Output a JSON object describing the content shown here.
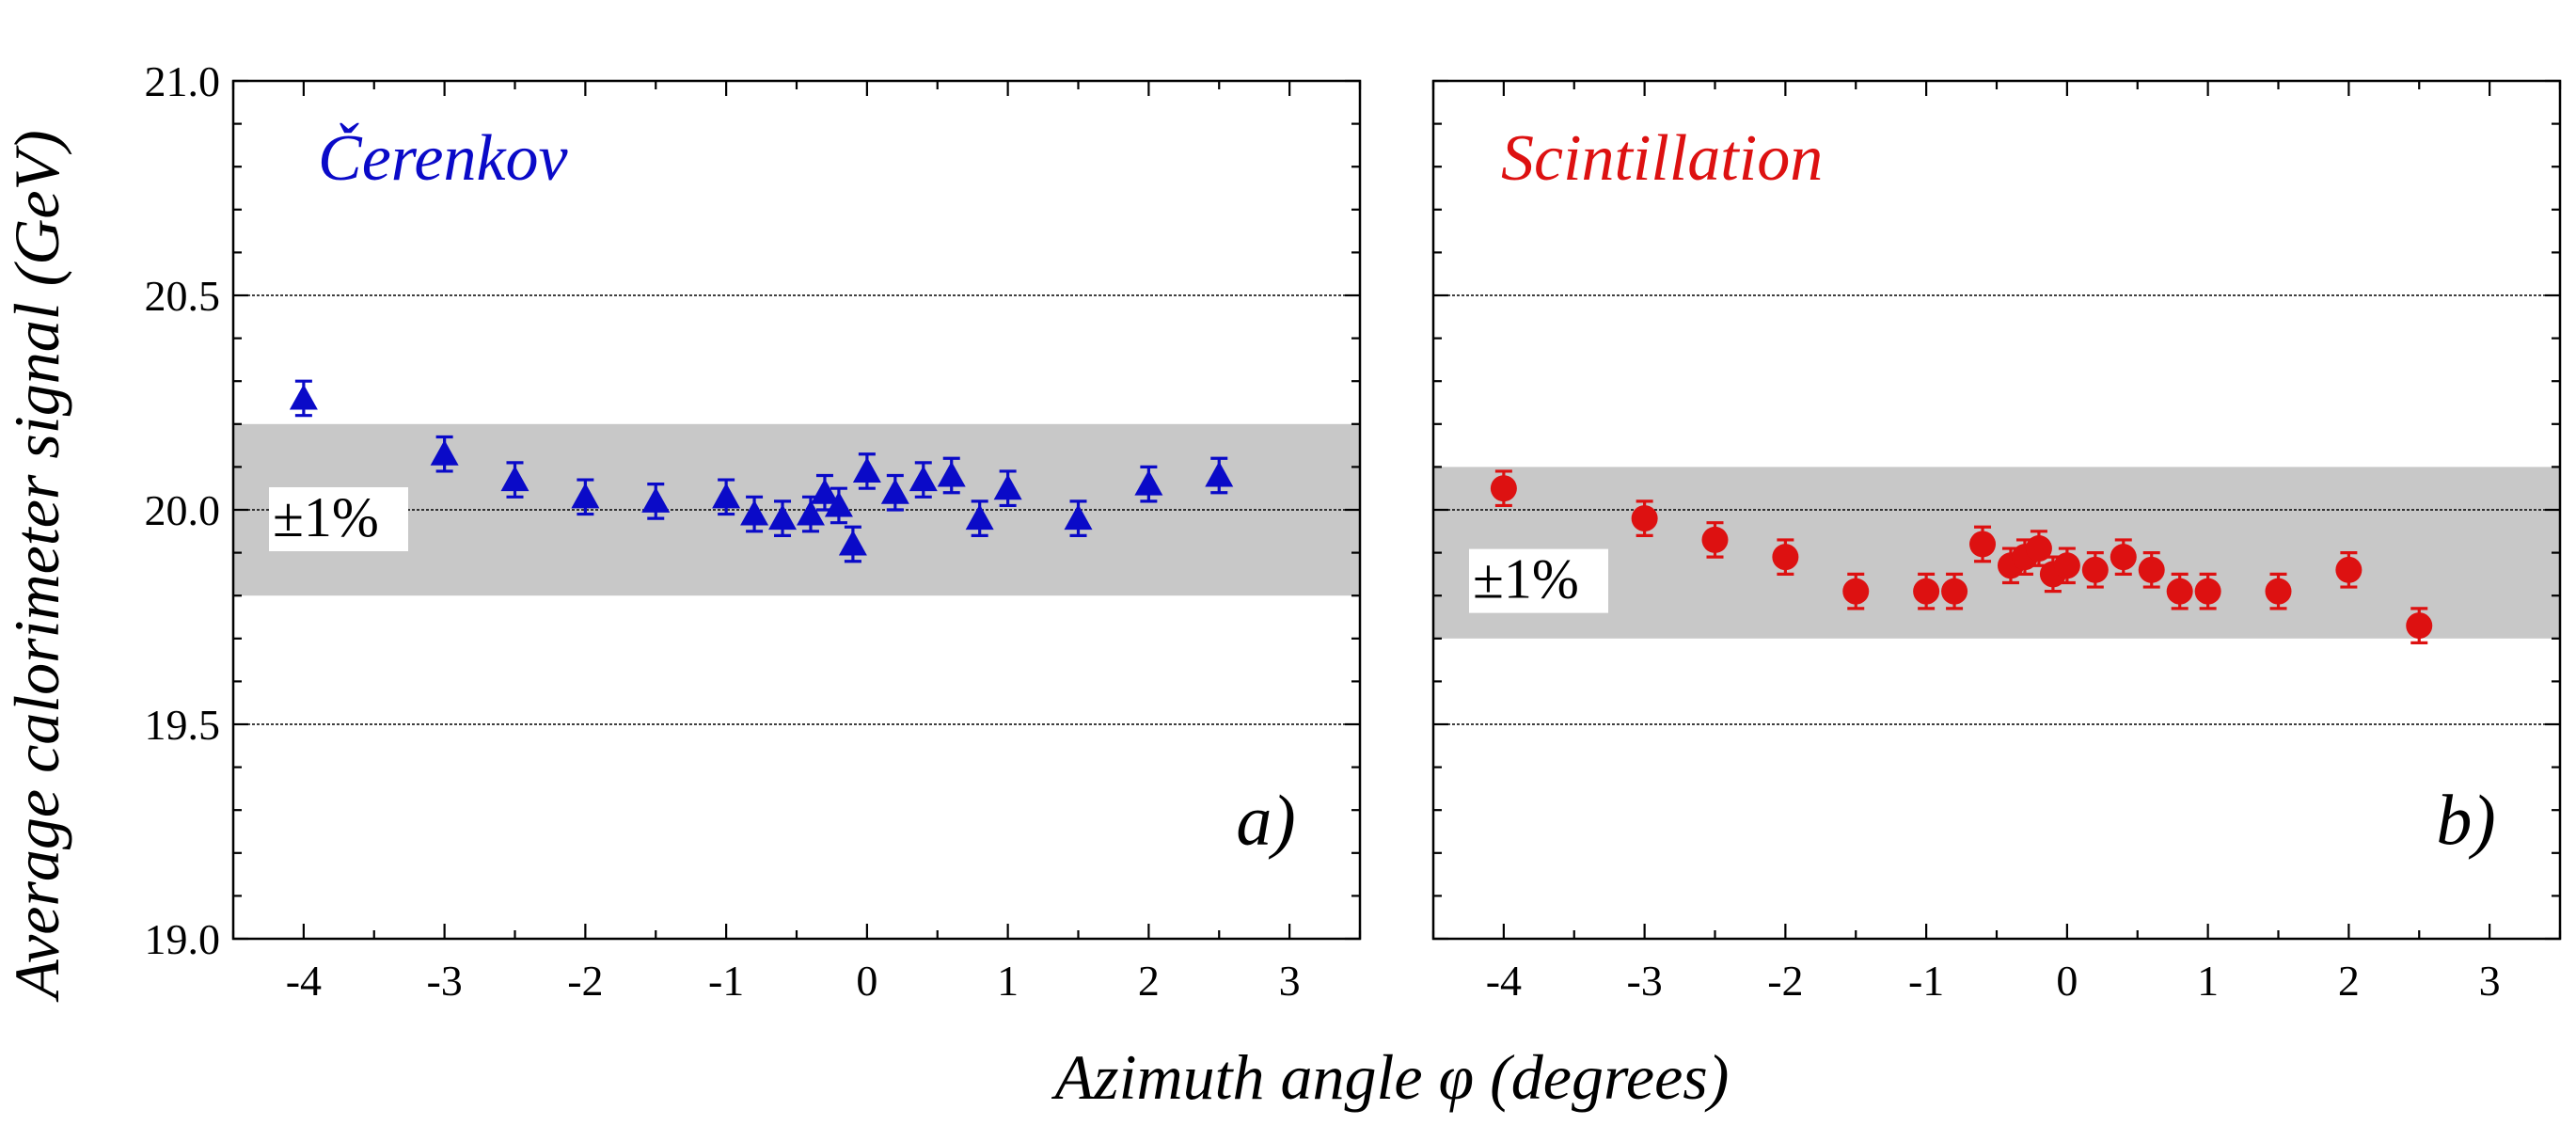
{
  "figure": {
    "ylabel": "Average calorimeter signal (GeV)",
    "xlabel": "Azimuth angle φ (degrees)",
    "band_label": "±1%"
  },
  "chart_data": [
    {
      "type": "scatter",
      "panel_letter": "a)",
      "title": "Čerenkov",
      "color": "#0a0ac8",
      "marker": "triangle",
      "xlim": [
        -4.5,
        3.5
      ],
      "ylim": [
        19.0,
        21.0
      ],
      "xticks": [
        "-4",
        "-3",
        "-2",
        "-1",
        "0",
        "1",
        "2",
        "3"
      ],
      "xtick_values": [
        -4,
        -3,
        -2,
        -1,
        0,
        1,
        2,
        3
      ],
      "yticks": [
        "19.0",
        "19.5",
        "20.0",
        "20.5",
        "21.0"
      ],
      "ytick_values": [
        19.0,
        19.5,
        20.0,
        20.5,
        21.0
      ],
      "reference_lines": [
        19.5,
        20.0,
        20.5
      ],
      "band": [
        19.8,
        20.2
      ],
      "points": [
        {
          "x": -4.0,
          "y": 20.26,
          "err": 0.04
        },
        {
          "x": -3.0,
          "y": 20.13,
          "err": 0.04
        },
        {
          "x": -2.5,
          "y": 20.07,
          "err": 0.04
        },
        {
          "x": -2.0,
          "y": 20.03,
          "err": 0.04
        },
        {
          "x": -1.5,
          "y": 20.02,
          "err": 0.04
        },
        {
          "x": -1.0,
          "y": 20.03,
          "err": 0.04
        },
        {
          "x": -0.8,
          "y": 19.99,
          "err": 0.04
        },
        {
          "x": -0.6,
          "y": 19.98,
          "err": 0.04
        },
        {
          "x": -0.4,
          "y": 19.99,
          "err": 0.04
        },
        {
          "x": -0.3,
          "y": 20.04,
          "err": 0.04
        },
        {
          "x": -0.2,
          "y": 20.01,
          "err": 0.04
        },
        {
          "x": -0.1,
          "y": 19.92,
          "err": 0.04
        },
        {
          "x": 0.0,
          "y": 20.09,
          "err": 0.04
        },
        {
          "x": 0.2,
          "y": 20.04,
          "err": 0.04
        },
        {
          "x": 0.4,
          "y": 20.07,
          "err": 0.04
        },
        {
          "x": 0.6,
          "y": 20.08,
          "err": 0.04
        },
        {
          "x": 0.8,
          "y": 19.98,
          "err": 0.04
        },
        {
          "x": 1.0,
          "y": 20.05,
          "err": 0.04
        },
        {
          "x": 1.5,
          "y": 19.98,
          "err": 0.04
        },
        {
          "x": 2.0,
          "y": 20.06,
          "err": 0.04
        },
        {
          "x": 2.5,
          "y": 20.08,
          "err": 0.04
        }
      ]
    },
    {
      "type": "scatter",
      "panel_letter": "b)",
      "title": "Scintillation",
      "color": "#dd1111",
      "marker": "circle",
      "xlim": [
        -4.5,
        3.5
      ],
      "ylim": [
        19.0,
        21.0
      ],
      "xticks": [
        "-4",
        "-3",
        "-2",
        "-1",
        "0",
        "1",
        "2",
        "3"
      ],
      "xtick_values": [
        -4,
        -3,
        -2,
        -1,
        0,
        1,
        2,
        3
      ],
      "yticks": [],
      "ytick_values": [
        19.0,
        19.5,
        20.0,
        20.5,
        21.0
      ],
      "reference_lines": [
        19.5,
        20.0,
        20.5
      ],
      "band": [
        19.7,
        20.1
      ],
      "points": [
        {
          "x": -4.0,
          "y": 20.05,
          "err": 0.04
        },
        {
          "x": -3.0,
          "y": 19.98,
          "err": 0.04
        },
        {
          "x": -2.5,
          "y": 19.93,
          "err": 0.04
        },
        {
          "x": -2.0,
          "y": 19.89,
          "err": 0.04
        },
        {
          "x": -1.5,
          "y": 19.81,
          "err": 0.04
        },
        {
          "x": -1.0,
          "y": 19.81,
          "err": 0.04
        },
        {
          "x": -0.8,
          "y": 19.81,
          "err": 0.04
        },
        {
          "x": -0.6,
          "y": 19.92,
          "err": 0.04
        },
        {
          "x": -0.4,
          "y": 19.87,
          "err": 0.04
        },
        {
          "x": -0.3,
          "y": 19.89,
          "err": 0.04
        },
        {
          "x": -0.2,
          "y": 19.91,
          "err": 0.04
        },
        {
          "x": -0.1,
          "y": 19.85,
          "err": 0.04
        },
        {
          "x": 0.0,
          "y": 19.87,
          "err": 0.04
        },
        {
          "x": 0.2,
          "y": 19.86,
          "err": 0.04
        },
        {
          "x": 0.4,
          "y": 19.89,
          "err": 0.04
        },
        {
          "x": 0.6,
          "y": 19.86,
          "err": 0.04
        },
        {
          "x": 0.8,
          "y": 19.81,
          "err": 0.04
        },
        {
          "x": 1.0,
          "y": 19.81,
          "err": 0.04
        },
        {
          "x": 1.5,
          "y": 19.81,
          "err": 0.04
        },
        {
          "x": 2.0,
          "y": 19.86,
          "err": 0.04
        },
        {
          "x": 2.5,
          "y": 19.73,
          "err": 0.04
        }
      ]
    }
  ]
}
